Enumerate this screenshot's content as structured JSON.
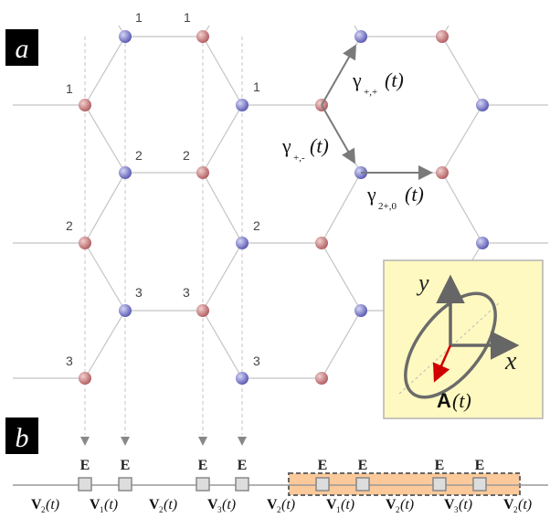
{
  "panel_a": {
    "label": "a",
    "row_indices": [
      "1",
      "1",
      "1",
      "1",
      "2",
      "2",
      "2",
      "2",
      "3",
      "3",
      "3",
      "3"
    ],
    "hoppings": [
      {
        "symbol": "γ",
        "sub": "+,+",
        "arg": "(t)"
      },
      {
        "symbol": "γ",
        "sub": "+,-",
        "arg": "(t)"
      },
      {
        "symbol": "γ",
        "sub": "2+,0",
        "arg": "(t)"
      }
    ],
    "inset": {
      "y_axis": "y",
      "x_axis": "x",
      "vector_label": "A",
      "vector_arg": "(t)",
      "background": "#fef9c0"
    }
  },
  "panel_b": {
    "label": "b",
    "e_label": "E",
    "bonds": [
      {
        "v": "V",
        "sub": "2",
        "arg": "(t)"
      },
      {
        "v": "V",
        "sub": "1",
        "arg": "(t)"
      },
      {
        "v": "V",
        "sub": "2",
        "arg": "(t)"
      },
      {
        "v": "V",
        "sub": "3",
        "arg": "(t)"
      },
      {
        "v": "V",
        "sub": "2",
        "arg": "(t)"
      },
      {
        "v": "V",
        "sub": "1",
        "arg": "(t)"
      },
      {
        "v": "V",
        "sub": "2",
        "arg": "(t)"
      },
      {
        "v": "V",
        "sub": "3",
        "arg": "(t)"
      },
      {
        "v": "V",
        "sub": "2",
        "arg": "(t)"
      }
    ],
    "unit_cell_color": "#fbc99a"
  },
  "colors": {
    "red_site": "#c86d70",
    "blue_site": "#6f70c4",
    "arrow": "#7a7a7a"
  }
}
